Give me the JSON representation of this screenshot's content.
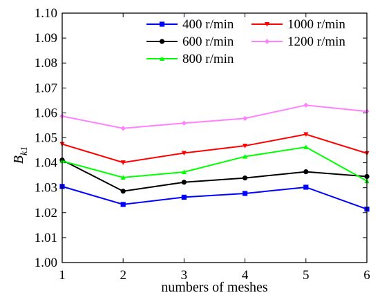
{
  "chart_data": {
    "type": "line",
    "xlabel": "numbers of meshes",
    "ylabel_main": "B",
    "ylabel_sub": "k1",
    "x": [
      1,
      2,
      3,
      4,
      5,
      6
    ],
    "xlim": [
      1,
      6
    ],
    "ylim": [
      1.0,
      1.1
    ],
    "x_ticks": [
      "1",
      "2",
      "3",
      "4",
      "5",
      "6"
    ],
    "y_ticks": [
      "1.00",
      "1.01",
      "1.02",
      "1.03",
      "1.04",
      "1.05",
      "1.06",
      "1.07",
      "1.08",
      "1.09",
      "1.10"
    ],
    "grid": false,
    "legend_position": "top-right",
    "series": [
      {
        "name": "400 r/min",
        "color": "#0000ff",
        "marker": "square",
        "values": [
          1.0305,
          1.0233,
          1.0262,
          1.0277,
          1.0302,
          1.0214
        ]
      },
      {
        "name": "1000 r/min",
        "color": "#ff0000",
        "marker": "triangle-down",
        "values": [
          1.0475,
          1.0401,
          1.0439,
          1.0468,
          1.0514,
          1.0438
        ]
      },
      {
        "name": "600 r/min",
        "color": "#000000",
        "marker": "circle",
        "values": [
          1.0411,
          1.0286,
          1.0322,
          1.0339,
          1.0364,
          1.0345
        ]
      },
      {
        "name": "1200 r/min",
        "color": "#ff80ff",
        "marker": "diamond",
        "values": [
          1.0587,
          1.0538,
          1.0559,
          1.0578,
          1.0631,
          1.0606
        ]
      },
      {
        "name": "800 r/min",
        "color": "#00ff00",
        "marker": "triangle-up",
        "values": [
          1.0407,
          1.0341,
          1.0363,
          1.0425,
          1.0463,
          1.0327
        ]
      }
    ]
  }
}
